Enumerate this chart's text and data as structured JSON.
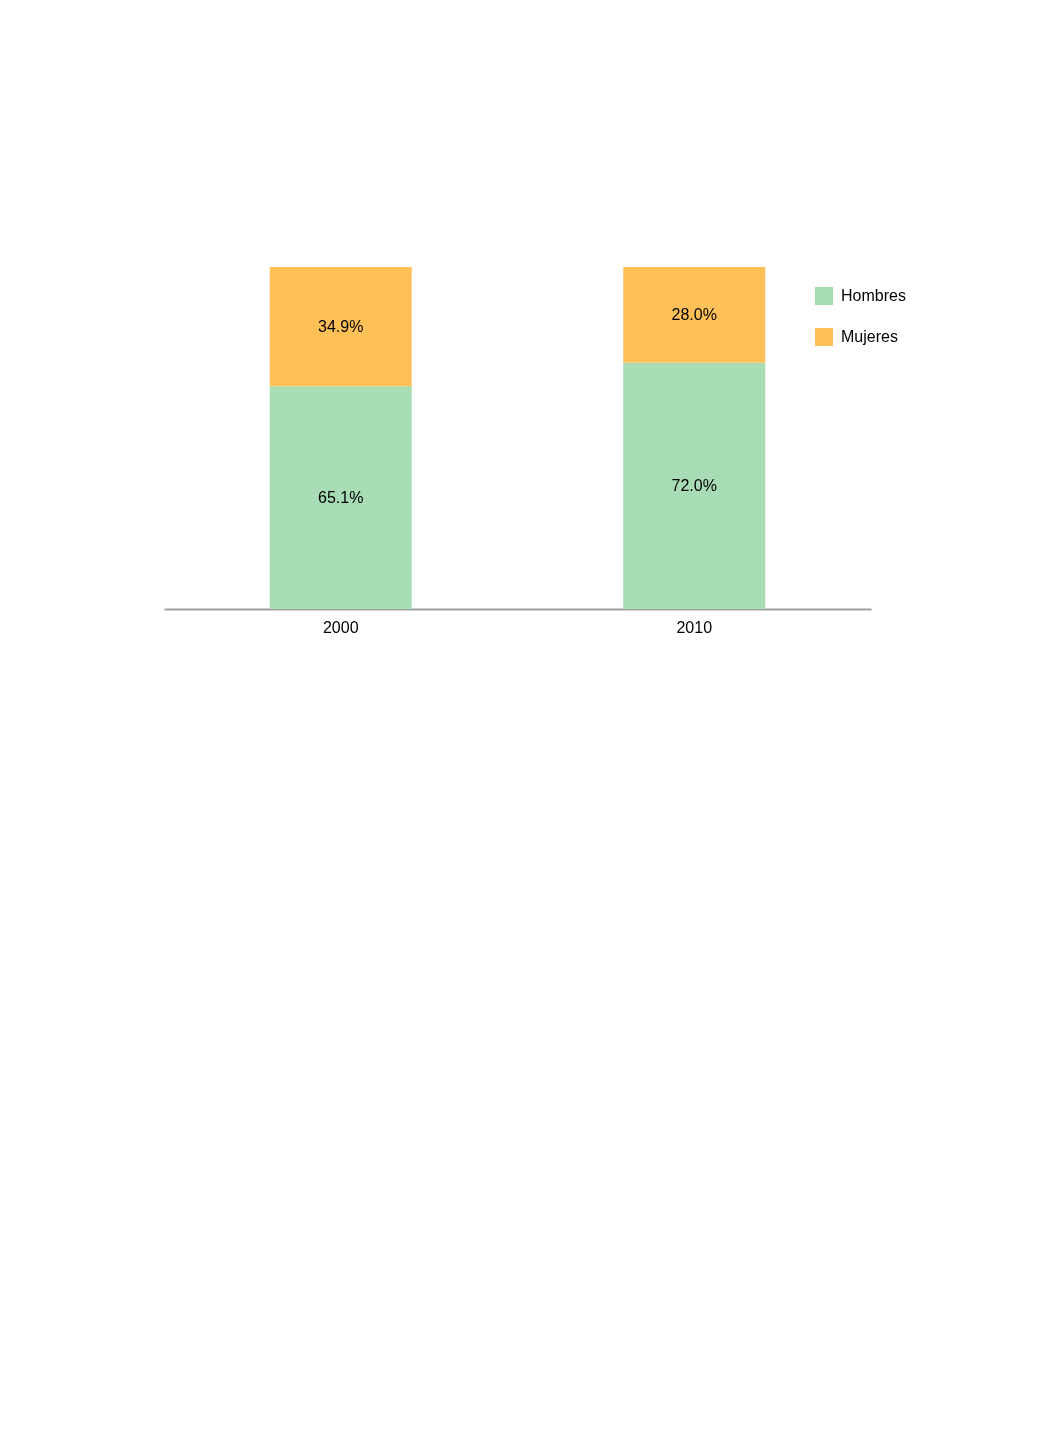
{
  "chart_data": {
    "type": "bar",
    "stacked": true,
    "categories": [
      "2000",
      "2010"
    ],
    "series": [
      {
        "name": "Hombres",
        "color": "#a8dcb5",
        "values": [
          65.1,
          72.0
        ],
        "value_labels": [
          "65.1%",
          "72.0%"
        ]
      },
      {
        "name": "Mujeres",
        "color": "#fec057",
        "values": [
          34.9,
          28.0
        ],
        "value_labels": [
          "34.9%",
          "28.0%"
        ]
      }
    ],
    "legend": "top right",
    "grid": false
  }
}
